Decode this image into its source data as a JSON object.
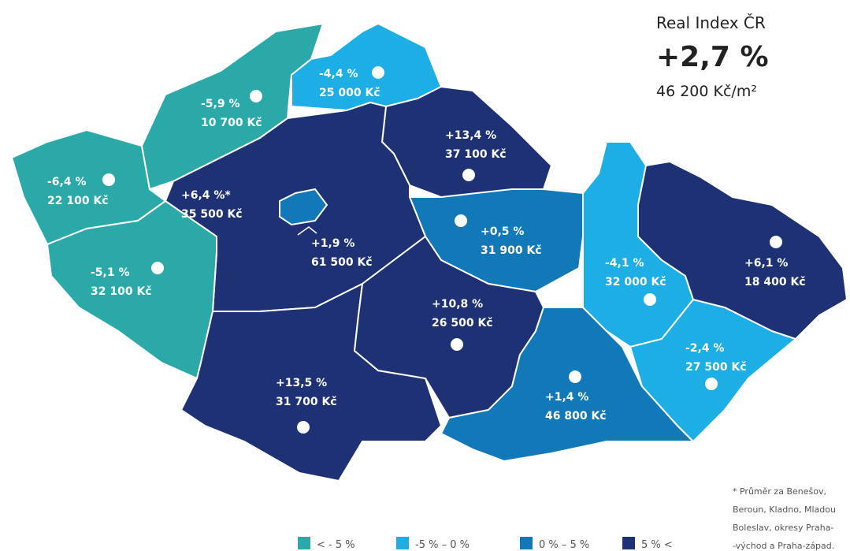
{
  "header": {
    "title": "Real Index ČR",
    "change": "+2,7 %",
    "price": "46 200 Kč/m²"
  },
  "legend": [
    {
      "label": "< - 5 %",
      "color": "#2aa9a8"
    },
    {
      "label": "-5 % – 0 %",
      "color": "#1daee6"
    },
    {
      "label": "0 % – 5 %",
      "color": "#1279b8"
    },
    {
      "label": "5 % <",
      "color": "#1d3174"
    }
  ],
  "regions": [
    {
      "change": "-6,4 %",
      "price": "22 100 Kč",
      "bin": 0
    },
    {
      "change": "-5,9 %",
      "price": "10 700 Kč",
      "bin": 0
    },
    {
      "change": "-4,4 %",
      "price": "25 000 Kč",
      "bin": 1
    },
    {
      "change": "+13,4 %",
      "price": "37 100 Kč",
      "bin": 3
    },
    {
      "change": "+0,5 %",
      "price": "31 900 Kč",
      "bin": 2
    },
    {
      "change": "+6,4 %*",
      "price": "35 500 Kč",
      "bin": 3
    },
    {
      "change": "+1,9 %",
      "price": "61 500 Kč",
      "bin": 2
    },
    {
      "change": "-5,1 %",
      "price": "32 100 Kč",
      "bin": 0
    },
    {
      "change": "+13,5 %",
      "price": "31 700 Kč",
      "bin": 3
    },
    {
      "change": "+10,8 %",
      "price": "26 500 Kč",
      "bin": 3
    },
    {
      "change": "+1,4 %",
      "price": "46 800 Kč",
      "bin": 2
    },
    {
      "change": "-4,1 %",
      "price": "32 000 Kč",
      "bin": 1
    },
    {
      "change": "-2,4 %",
      "price": "27 500 Kč",
      "bin": 1
    },
    {
      "change": "+6,1 %",
      "price": "18 400 Kč",
      "bin": 3
    }
  ],
  "footnote": [
    "* Průměr za Benešov,",
    "Beroun, Kladno, Mladou",
    "Boleslav, okresy Praha-",
    "-východ a Praha-západ."
  ]
}
